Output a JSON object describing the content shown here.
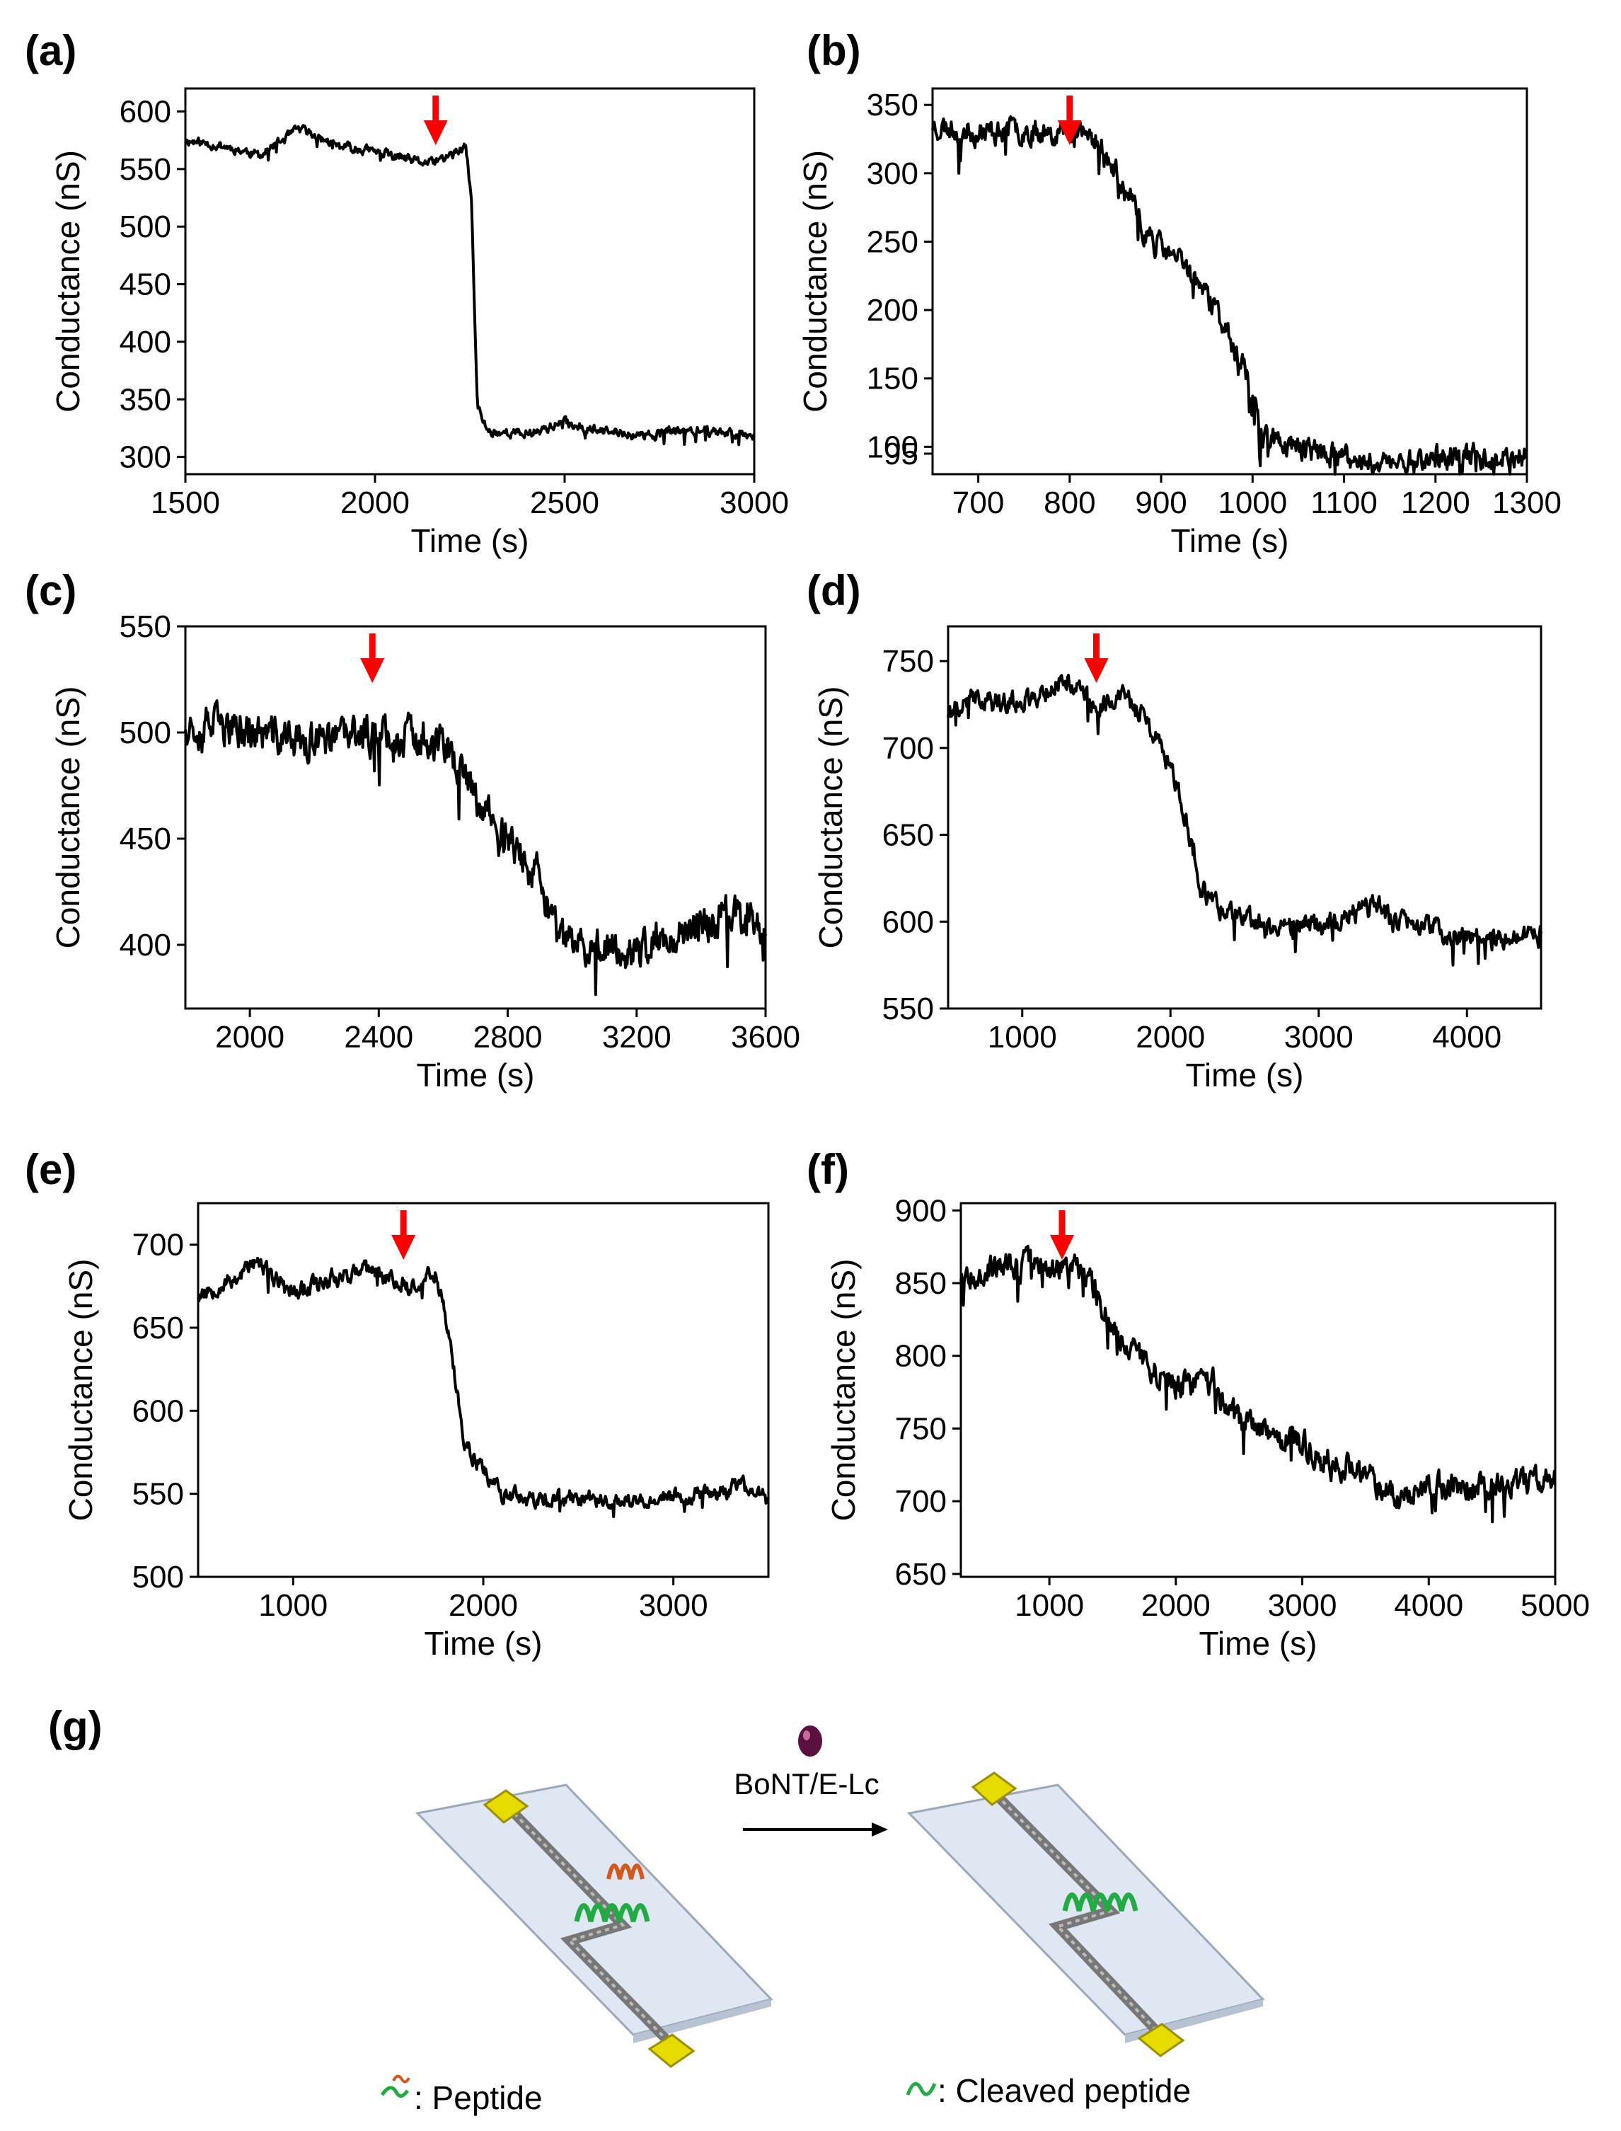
{
  "figure_colors": {
    "trace": "#000000",
    "arrow": "#ff0000",
    "axis": "#000000"
  },
  "chart_data": [
    {
      "panel": "(a)",
      "type": "line",
      "xlabel": "Time (s)",
      "ylabel": "Conductance (nS)",
      "xlim": [
        1500,
        3000
      ],
      "ylim": [
        285,
        620
      ],
      "xticks": [
        1500,
        2000,
        2500,
        3000
      ],
      "yticks": [
        300,
        350,
        400,
        450,
        500,
        550,
        600
      ],
      "marker_x": 2160,
      "noise": 4,
      "seed": 11,
      "series": [
        {
          "name": "conductance",
          "x": [
            1500,
            1600,
            1700,
            1800,
            1900,
            2000,
            2100,
            2150,
            2200,
            2240,
            2255,
            2262,
            2270,
            2280,
            2300,
            2400,
            2500,
            2600,
            2700,
            2800,
            2900,
            3000
          ],
          "y": [
            575,
            570,
            562,
            585,
            570,
            565,
            557,
            555,
            562,
            568,
            520,
            430,
            345,
            335,
            322,
            320,
            330,
            322,
            318,
            323,
            322,
            320
          ]
        }
      ]
    },
    {
      "panel": "(b)",
      "type": "line",
      "xlabel": "Time (s)",
      "ylabel": "Conductance (nS)",
      "xlim": [
        650,
        1300
      ],
      "ylim": [
        80,
        362
      ],
      "xticks": [
        700,
        800,
        900,
        1000,
        1100,
        1200,
        1300
      ],
      "yticks": [
        95,
        100,
        150,
        200,
        250,
        300,
        350
      ],
      "ytick_labels": [
        "95",
        "100",
        "150",
        "200",
        "250",
        "300",
        "350"
      ],
      "marker_x": 800,
      "noise": 9,
      "seed": 23,
      "series": [
        {
          "name": "conductance",
          "x": [
            650,
            700,
            750,
            800,
            830,
            850,
            880,
            900,
            930,
            960,
            990,
            1010,
            1030,
            1050,
            1100,
            1150,
            1200,
            1250,
            1300
          ],
          "y": [
            335,
            330,
            332,
            330,
            325,
            300,
            260,
            245,
            230,
            200,
            160,
            110,
            103,
            100,
            90,
            88,
            92,
            93,
            92
          ]
        }
      ]
    },
    {
      "panel": "(c)",
      "type": "line",
      "xlabel": "Time (s)",
      "ylabel": "Conductance (nS)",
      "xlim": [
        1800,
        3600
      ],
      "ylim": [
        370,
        550
      ],
      "xticks": [
        2000,
        2400,
        2800,
        3200,
        3600
      ],
      "yticks": [
        400,
        450,
        500,
        550
      ],
      "marker_x": 2380,
      "noise": 9,
      "seed": 37,
      "series": [
        {
          "name": "conductance",
          "x": [
            1800,
            2000,
            2200,
            2400,
            2600,
            2700,
            2800,
            2900,
            2960,
            3000,
            3100,
            3200,
            3300,
            3400,
            3500,
            3600
          ],
          "y": [
            505,
            500,
            495,
            500,
            495,
            470,
            450,
            430,
            400,
            400,
            400,
            395,
            405,
            410,
            415,
            410
          ]
        }
      ]
    },
    {
      "panel": "(d)",
      "type": "line",
      "xlabel": "Time (s)",
      "ylabel": "Conductance (nS)",
      "xlim": [
        500,
        4500
      ],
      "ylim": [
        550,
        770
      ],
      "xticks": [
        1000,
        2000,
        3000,
        4000
      ],
      "yticks": [
        550,
        600,
        650,
        700,
        750
      ],
      "marker_x": 1500,
      "noise": 6,
      "seed": 41,
      "series": [
        {
          "name": "conductance",
          "x": [
            500,
            700,
            900,
            1100,
            1300,
            1500,
            1700,
            1800,
            2000,
            2100,
            2200,
            2300,
            2500,
            3000,
            3400,
            3500,
            3600,
            4000,
            4500
          ],
          "y": [
            720,
            730,
            725,
            730,
            740,
            725,
            730,
            720,
            690,
            660,
            620,
            610,
            600,
            597,
            610,
            600,
            600,
            590,
            592
          ]
        }
      ]
    },
    {
      "panel": "(e)",
      "type": "line",
      "xlabel": "Time (s)",
      "ylabel": "Conductance (nS)",
      "xlim": [
        500,
        3500
      ],
      "ylim": [
        500,
        725
      ],
      "xticks": [
        1000,
        2000,
        3000
      ],
      "yticks": [
        500,
        550,
        600,
        650,
        700
      ],
      "marker_x": 1580,
      "noise": 5,
      "seed": 53,
      "series": [
        {
          "name": "conductance",
          "x": [
            500,
            700,
            800,
            900,
            1000,
            1200,
            1400,
            1600,
            1750,
            1800,
            1850,
            1900,
            2000,
            2100,
            2300,
            2500,
            2800,
            3200,
            3400,
            3500
          ],
          "y": [
            670,
            680,
            690,
            680,
            672,
            680,
            685,
            675,
            683,
            660,
            620,
            580,
            565,
            550,
            545,
            548,
            545,
            550,
            555,
            545
          ]
        }
      ]
    },
    {
      "panel": "(f)",
      "type": "line",
      "xlabel": "Time (s)",
      "ylabel": "Conductance (nS)",
      "xlim": [
        300,
        5000
      ],
      "ylim": [
        648,
        905
      ],
      "xticks": [
        1000,
        2000,
        3000,
        4000,
        5000
      ],
      "yticks": [
        650,
        700,
        750,
        800,
        850,
        900
      ],
      "marker_x": 1100,
      "noise": 9,
      "seed": 67,
      "series": [
        {
          "name": "conductance",
          "x": [
            300,
            500,
            800,
            1100,
            1300,
            1500,
            1700,
            2000,
            2300,
            2500,
            2700,
            3000,
            3300,
            3500,
            3700,
            4000,
            4500,
            5000
          ],
          "y": [
            855,
            860,
            862,
            860,
            858,
            820,
            800,
            780,
            780,
            755,
            745,
            740,
            725,
            720,
            705,
            710,
            712,
            715
          ]
        }
      ]
    }
  ],
  "panel_g": {
    "label": "(g)",
    "enzyme_label": "BoNT/E-Lc",
    "legend": [
      {
        "symbol": "peptide-glyph",
        "text": ": Peptide"
      },
      {
        "symbol": "cleaved-peptide-glyph",
        "text": ": Cleaved peptide"
      }
    ],
    "colors": {
      "substrate": "#dfe7f2",
      "pad": "#e6dc00",
      "wire": "#777777",
      "peptide_green": "#22aa44",
      "peptide_orange": "#d05a1e",
      "enzyme": "#5a1040"
    }
  }
}
